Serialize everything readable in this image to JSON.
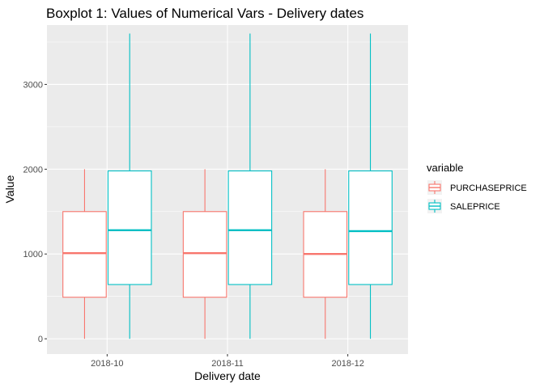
{
  "chart_data": {
    "type": "boxplot",
    "title": "Boxplot 1: Values of Numerical Vars - Delivery dates",
    "xlabel": "Delivery date",
    "ylabel": "Value",
    "categories": [
      "2018-10",
      "2018-11",
      "2018-12"
    ],
    "ylim": [
      -180,
      3700
    ],
    "yticks": [
      0,
      1000,
      2000,
      3000
    ],
    "grid": true,
    "legend": {
      "title": "variable",
      "position": "right"
    },
    "series": [
      {
        "name": "PURCHASEPRICE",
        "color": "#F8766D",
        "boxes": [
          {
            "min": 0,
            "q1": 490,
            "median": 1010,
            "q3": 1500,
            "max": 2000
          },
          {
            "min": 0,
            "q1": 490,
            "median": 1010,
            "q3": 1500,
            "max": 2000
          },
          {
            "min": 0,
            "q1": 490,
            "median": 1000,
            "q3": 1500,
            "max": 2000
          }
        ]
      },
      {
        "name": "SALEPRICE",
        "color": "#00BFC4",
        "boxes": [
          {
            "min": 0,
            "q1": 640,
            "median": 1280,
            "q3": 1980,
            "max": 3600
          },
          {
            "min": 0,
            "q1": 640,
            "median": 1280,
            "q3": 1980,
            "max": 3600
          },
          {
            "min": 0,
            "q1": 640,
            "median": 1270,
            "q3": 1980,
            "max": 3600
          }
        ]
      }
    ]
  }
}
